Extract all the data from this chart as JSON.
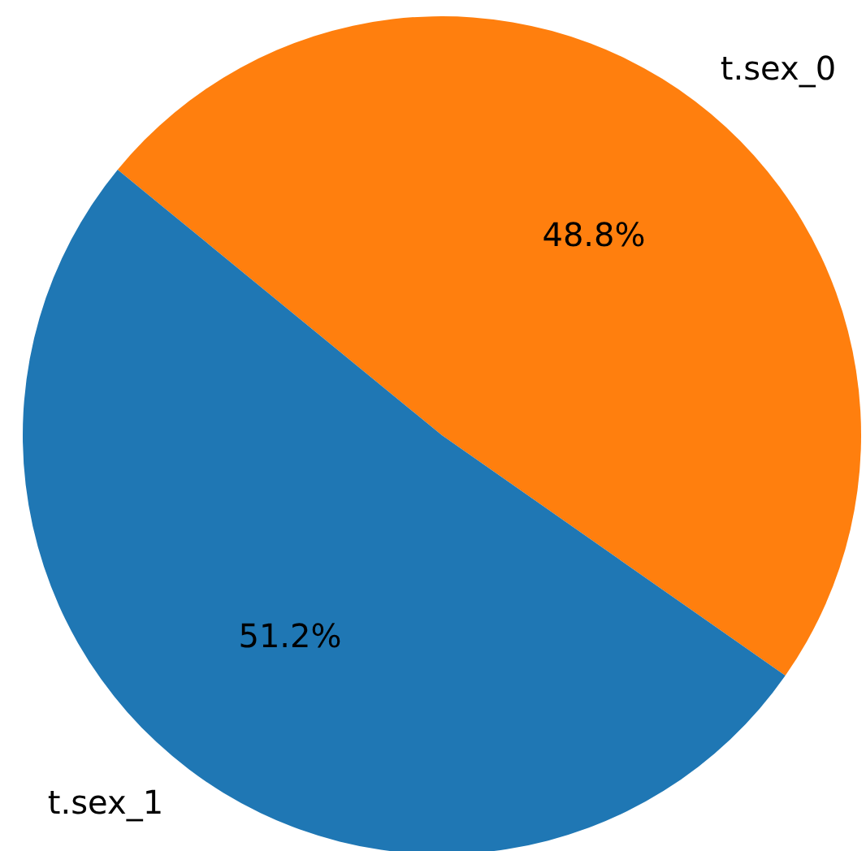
{
  "chart_data": {
    "type": "pie",
    "categories": [
      "t.sex_0",
      "t.sex_1"
    ],
    "values": [
      48.8,
      51.2
    ],
    "colors": [
      "#ff7f0e",
      "#1f77b4"
    ],
    "value_labels": [
      "48.8%",
      "51.2%"
    ]
  }
}
